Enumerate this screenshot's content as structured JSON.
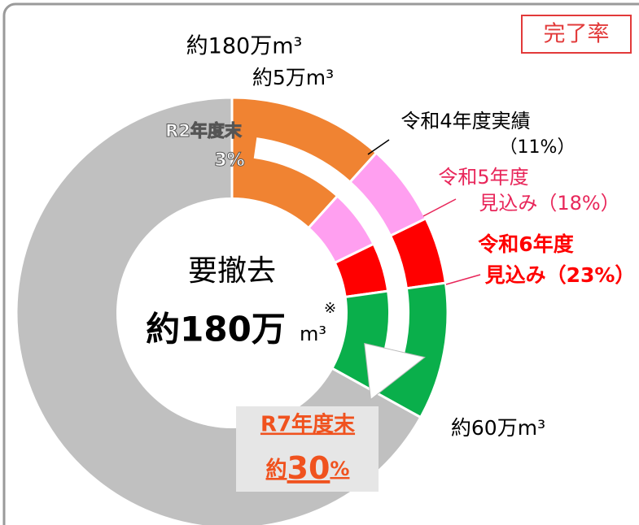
{
  "badge": "完了率",
  "center": {
    "title": "要撤去",
    "amount": "約180万",
    "unit": "m³",
    "note": "※"
  },
  "top_labels": {
    "total": "約180万m³",
    "r2_amount": "約5万m³"
  },
  "r2": {
    "label": "R2年度末",
    "rate": "3%"
  },
  "r4": {
    "label": "令和4年度実績",
    "rate": "（11%）"
  },
  "r5": {
    "label": "令和5年度",
    "rate": "見込み（18%）"
  },
  "r6": {
    "label": "令和6年度",
    "rate": "見込み（23%）"
  },
  "r7": {
    "label": "R7年度末",
    "rate_prefix": "約",
    "rate": "30",
    "unit": "%",
    "amount": "約60万m³"
  }
}
